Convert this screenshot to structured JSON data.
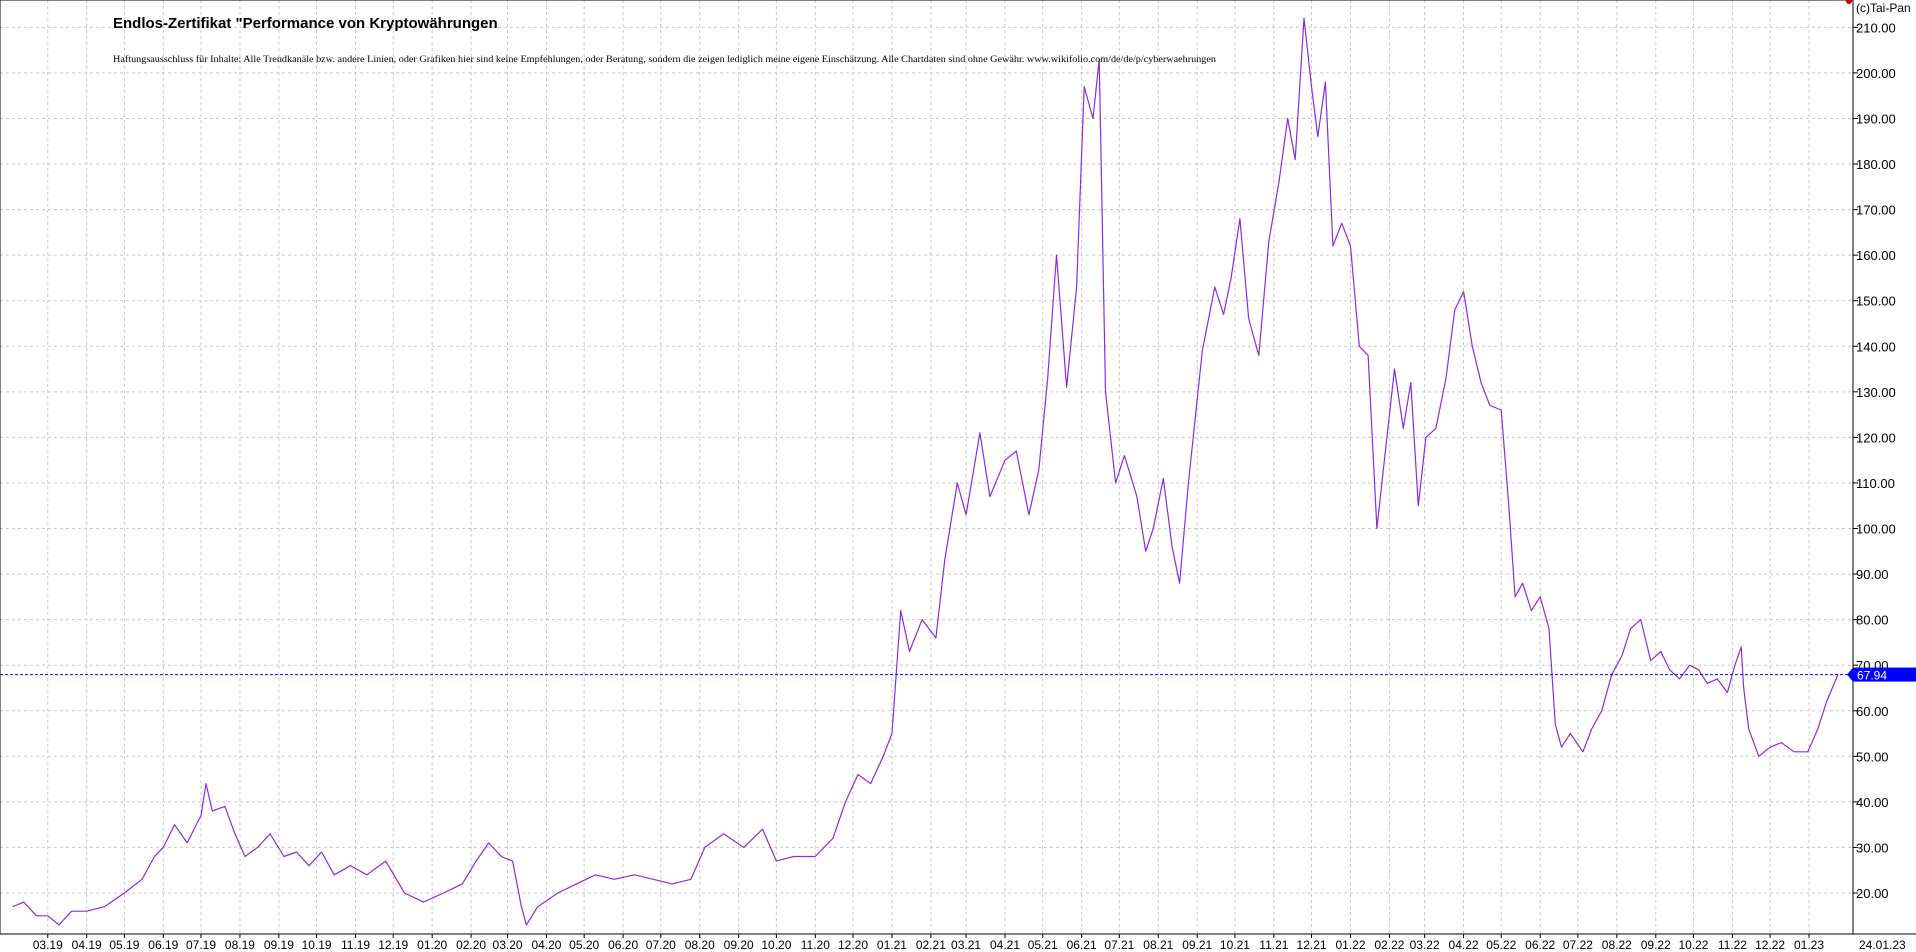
{
  "chart_data": {
    "type": "line",
    "title": "Endlos-Zertifikat \"Performance von Kryptowährungen",
    "subtitle": "Haftungsausschluss für Inhalte: Alle Trendkanäle bzw. andere Linien, oder Grafiken hier sind keine Empfehlungen, oder Beratung, sondern die zeigen lediglich meine eigene Einschätzung. Alle Chartdaten sind ohne Gewähr.  www.wikifolio.com/de/de/p/cyberwaehrungen",
    "copyright": "(c)Tai-Pan",
    "xlabel": "",
    "ylabel": "",
    "ylim": [
      11,
      216
    ],
    "grid": true,
    "y_ticks": [
      "20.00",
      "30.00",
      "40.00",
      "50.00",
      "60.00",
      "70.00",
      "80.00",
      "90.00",
      "100.00",
      "110.00",
      "120.00",
      "130.00",
      "140.00",
      "150.00",
      "160.00",
      "170.00",
      "180.00",
      "190.00",
      "200.00",
      "210.00"
    ],
    "x_ticks": [
      "03.19",
      "04.19",
      "05.19",
      "06.19",
      "07.19",
      "08.19",
      "09.19",
      "10.19",
      "11.19",
      "12.19",
      "01.20",
      "02.20",
      "03.20",
      "04.20",
      "05.20",
      "06.20",
      "07.20",
      "08.20",
      "09.20",
      "10.20",
      "11.20",
      "12.20",
      "01.21",
      "02.21",
      "03.21",
      "04.21",
      "05.21",
      "06.21",
      "07.21",
      "08.21",
      "09.21",
      "10.21",
      "11.21",
      "12.21",
      "01.22",
      "02.22",
      "03.22",
      "04.22",
      "05.22",
      "06.22",
      "07.22",
      "08.22",
      "09.22",
      "10.22",
      "11.22",
      "12.22",
      "01.23"
    ],
    "x_end_label": "24.01.23",
    "last_value": 67.94,
    "last_label": "67.94",
    "series": [
      {
        "color": "#8a2be2",
        "points": [
          [
            "2019-02-01",
            17
          ],
          [
            "2019-02-10",
            18
          ],
          [
            "2019-02-20",
            15
          ],
          [
            "2019-03-01",
            15
          ],
          [
            "2019-03-10",
            13
          ],
          [
            "2019-03-20",
            16
          ],
          [
            "2019-04-01",
            16
          ],
          [
            "2019-04-15",
            17
          ],
          [
            "2019-05-01",
            20
          ],
          [
            "2019-05-15",
            23
          ],
          [
            "2019-05-25",
            28
          ],
          [
            "2019-06-01",
            30
          ],
          [
            "2019-06-10",
            35
          ],
          [
            "2019-06-20",
            31
          ],
          [
            "2019-07-01",
            37
          ],
          [
            "2019-07-05",
            44
          ],
          [
            "2019-07-10",
            38
          ],
          [
            "2019-07-20",
            39
          ],
          [
            "2019-07-28",
            33
          ],
          [
            "2019-08-05",
            28
          ],
          [
            "2019-08-15",
            30
          ],
          [
            "2019-08-25",
            33
          ],
          [
            "2019-09-05",
            28
          ],
          [
            "2019-09-15",
            29
          ],
          [
            "2019-09-25",
            26
          ],
          [
            "2019-10-05",
            29
          ],
          [
            "2019-10-15",
            24
          ],
          [
            "2019-10-28",
            26
          ],
          [
            "2019-11-10",
            24
          ],
          [
            "2019-11-25",
            27
          ],
          [
            "2019-12-10",
            20
          ],
          [
            "2019-12-25",
            18
          ],
          [
            "2020-01-10",
            20
          ],
          [
            "2020-01-25",
            22
          ],
          [
            "2020-02-05",
            27
          ],
          [
            "2020-02-15",
            31
          ],
          [
            "2020-02-25",
            28
          ],
          [
            "2020-03-05",
            27
          ],
          [
            "2020-03-12",
            17
          ],
          [
            "2020-03-16",
            13
          ],
          [
            "2020-03-25",
            17
          ],
          [
            "2020-04-10",
            20
          ],
          [
            "2020-04-25",
            22
          ],
          [
            "2020-05-10",
            24
          ],
          [
            "2020-05-25",
            23
          ],
          [
            "2020-06-10",
            24
          ],
          [
            "2020-06-25",
            23
          ],
          [
            "2020-07-10",
            22
          ],
          [
            "2020-07-25",
            23
          ],
          [
            "2020-08-05",
            30
          ],
          [
            "2020-08-20",
            33
          ],
          [
            "2020-09-05",
            30
          ],
          [
            "2020-09-20",
            34
          ],
          [
            "2020-10-01",
            27
          ],
          [
            "2020-10-15",
            28
          ],
          [
            "2020-11-01",
            28
          ],
          [
            "2020-11-15",
            32
          ],
          [
            "2020-11-25",
            40
          ],
          [
            "2020-12-05",
            46
          ],
          [
            "2020-12-15",
            44
          ],
          [
            "2020-12-25",
            50
          ],
          [
            "2021-01-01",
            55
          ],
          [
            "2021-01-08",
            82
          ],
          [
            "2021-01-15",
            73
          ],
          [
            "2021-01-25",
            80
          ],
          [
            "2021-02-05",
            76
          ],
          [
            "2021-02-12",
            93
          ],
          [
            "2021-02-22",
            110
          ],
          [
            "2021-03-01",
            103
          ],
          [
            "2021-03-12",
            121
          ],
          [
            "2021-03-20",
            107
          ],
          [
            "2021-04-01",
            115
          ],
          [
            "2021-04-10",
            117
          ],
          [
            "2021-04-20",
            103
          ],
          [
            "2021-04-28",
            113
          ],
          [
            "2021-05-05",
            133
          ],
          [
            "2021-05-12",
            160
          ],
          [
            "2021-05-20",
            131
          ],
          [
            "2021-05-28",
            153
          ],
          [
            "2021-06-03",
            197
          ],
          [
            "2021-06-10",
            190
          ],
          [
            "2021-06-15",
            203
          ],
          [
            "2021-06-20",
            130
          ],
          [
            "2021-06-28",
            110
          ],
          [
            "2021-07-05",
            116
          ],
          [
            "2021-07-15",
            107
          ],
          [
            "2021-07-22",
            95
          ],
          [
            "2021-07-28",
            100
          ],
          [
            "2021-08-05",
            111
          ],
          [
            "2021-08-12",
            96
          ],
          [
            "2021-08-18",
            88
          ],
          [
            "2021-08-25",
            110
          ],
          [
            "2021-09-05",
            139
          ],
          [
            "2021-09-15",
            153
          ],
          [
            "2021-09-22",
            147
          ],
          [
            "2021-09-28",
            155
          ],
          [
            "2021-10-05",
            168
          ],
          [
            "2021-10-12",
            146
          ],
          [
            "2021-10-20",
            138
          ],
          [
            "2021-10-28",
            163
          ],
          [
            "2021-11-05",
            176
          ],
          [
            "2021-11-12",
            190
          ],
          [
            "2021-11-18",
            181
          ],
          [
            "2021-11-25",
            212
          ],
          [
            "2021-12-01",
            197
          ],
          [
            "2021-12-06",
            186
          ],
          [
            "2021-12-12",
            198
          ],
          [
            "2021-12-18",
            162
          ],
          [
            "2021-12-25",
            167
          ],
          [
            "2022-01-01",
            162
          ],
          [
            "2022-01-08",
            140
          ],
          [
            "2022-01-15",
            138
          ],
          [
            "2022-01-22",
            100
          ],
          [
            "2022-01-28",
            115
          ],
          [
            "2022-02-05",
            135
          ],
          [
            "2022-02-12",
            122
          ],
          [
            "2022-02-18",
            132
          ],
          [
            "2022-02-24",
            105
          ],
          [
            "2022-03-02",
            120
          ],
          [
            "2022-03-10",
            122
          ],
          [
            "2022-03-18",
            133
          ],
          [
            "2022-03-25",
            148
          ],
          [
            "2022-04-01",
            152
          ],
          [
            "2022-04-08",
            140
          ],
          [
            "2022-04-15",
            132
          ],
          [
            "2022-04-22",
            127
          ],
          [
            "2022-05-01",
            126
          ],
          [
            "2022-05-07",
            105
          ],
          [
            "2022-05-12",
            85
          ],
          [
            "2022-05-18",
            88
          ],
          [
            "2022-05-25",
            82
          ],
          [
            "2022-06-01",
            85
          ],
          [
            "2022-06-08",
            78
          ],
          [
            "2022-06-13",
            57
          ],
          [
            "2022-06-18",
            52
          ],
          [
            "2022-06-25",
            55
          ],
          [
            "2022-07-05",
            51
          ],
          [
            "2022-07-12",
            56
          ],
          [
            "2022-07-20",
            60
          ],
          [
            "2022-07-28",
            68
          ],
          [
            "2022-08-05",
            72
          ],
          [
            "2022-08-12",
            78
          ],
          [
            "2022-08-20",
            80
          ],
          [
            "2022-08-28",
            71
          ],
          [
            "2022-09-05",
            73
          ],
          [
            "2022-09-12",
            69
          ],
          [
            "2022-09-20",
            67
          ],
          [
            "2022-09-28",
            70
          ],
          [
            "2022-10-05",
            69
          ],
          [
            "2022-10-12",
            66
          ],
          [
            "2022-10-20",
            67
          ],
          [
            "2022-10-28",
            64
          ],
          [
            "2022-11-03",
            70
          ],
          [
            "2022-11-08",
            74
          ],
          [
            "2022-11-10",
            65
          ],
          [
            "2022-11-14",
            56
          ],
          [
            "2022-11-22",
            50
          ],
          [
            "2022-12-01",
            52
          ],
          [
            "2022-12-10",
            53
          ],
          [
            "2022-12-20",
            51
          ],
          [
            "2022-12-31",
            51
          ],
          [
            "2023-01-08",
            56
          ],
          [
            "2023-01-15",
            62
          ],
          [
            "2023-01-24",
            67.94
          ]
        ]
      }
    ]
  },
  "colors": {
    "background": "#ffffff",
    "grid": "#c8c8c8",
    "series": "#8a2be2",
    "last_value_line": "#0000ff",
    "last_value_box": "#0000ff",
    "corner_marker": "#cc0000"
  }
}
